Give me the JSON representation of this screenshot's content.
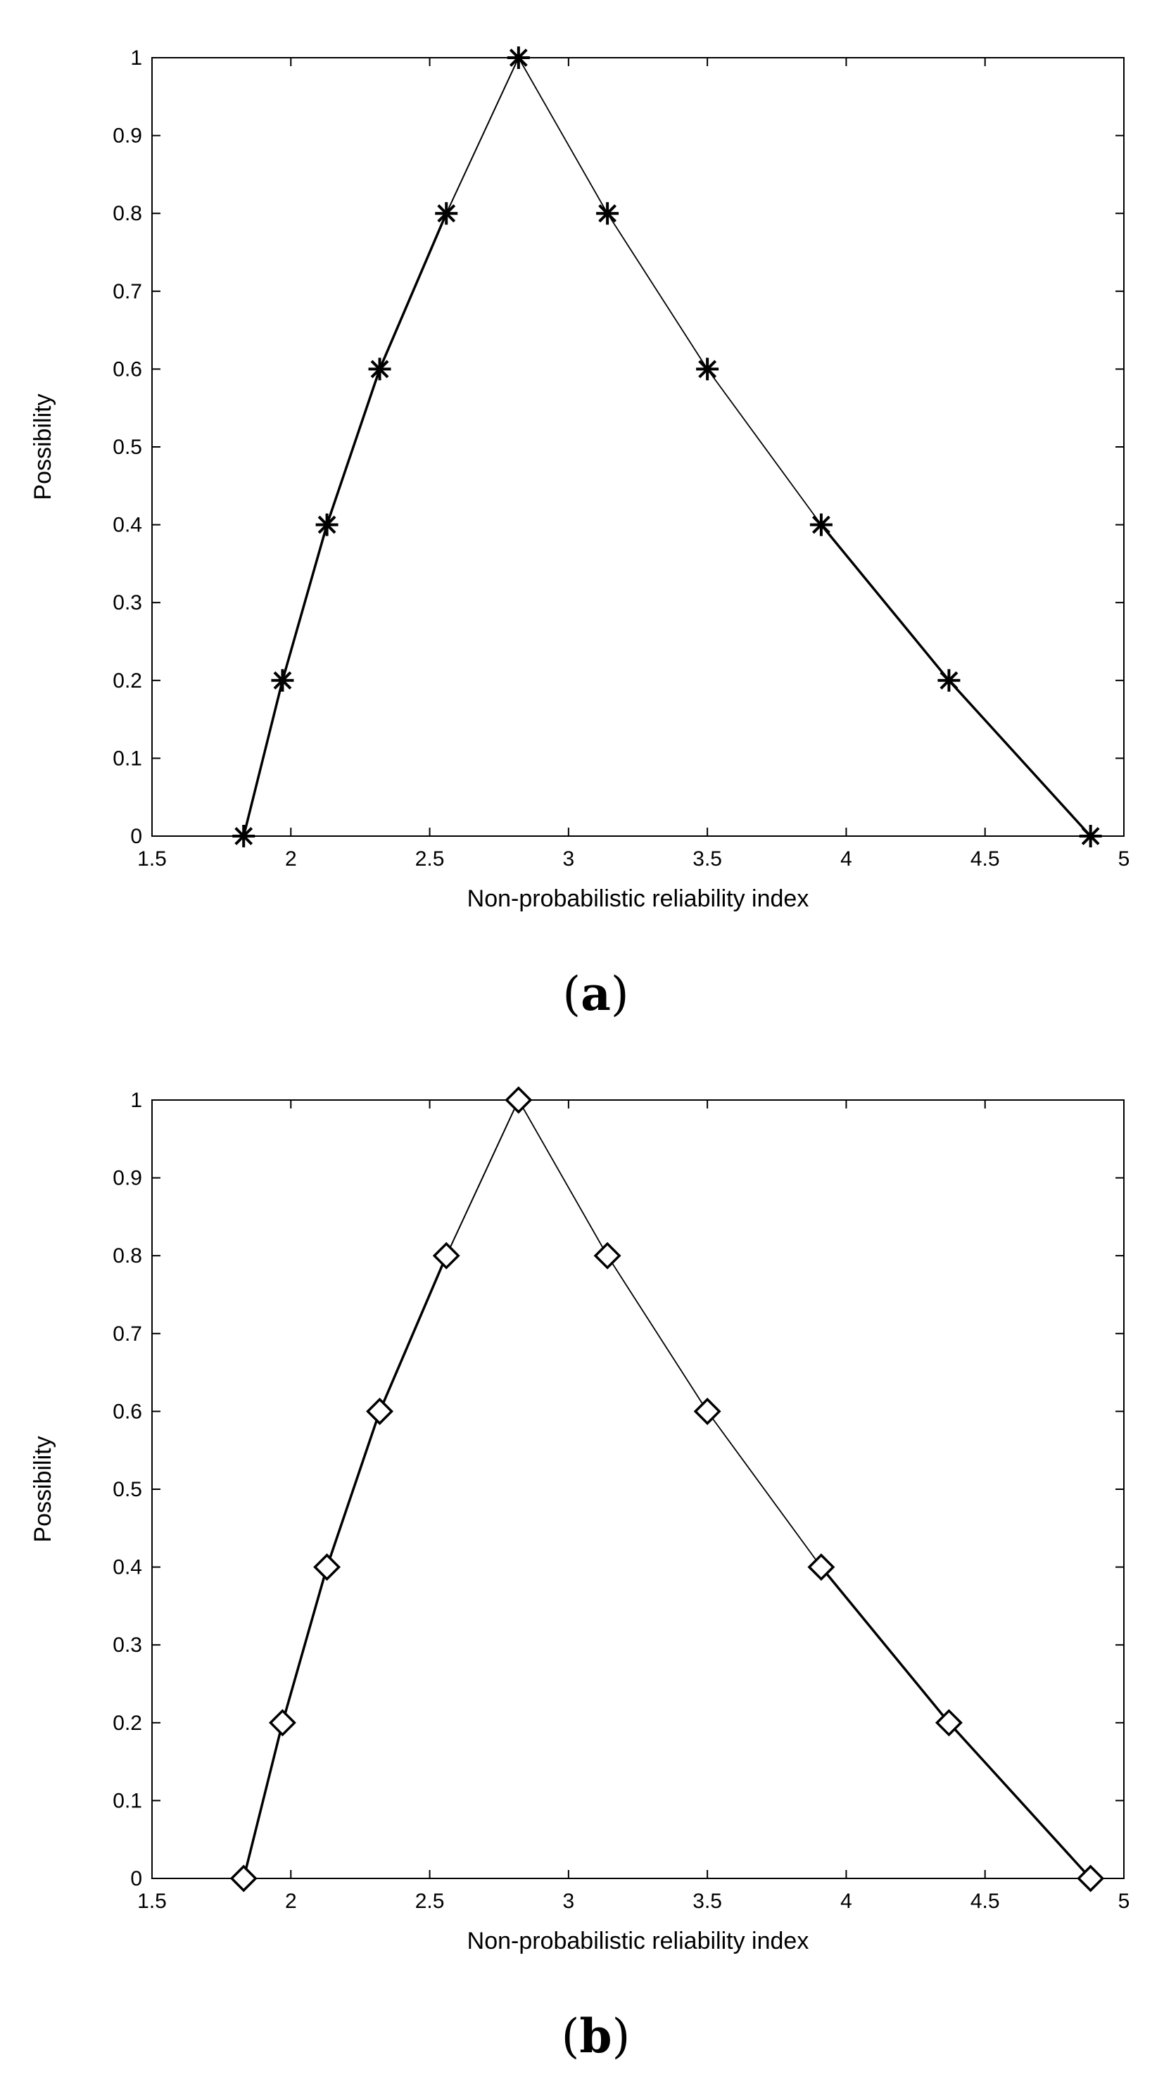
{
  "chart_data": [
    {
      "panel": "a",
      "caption_letter": "a",
      "type": "line",
      "marker": "asterisk",
      "xlabel": "Non-probabilistic reliability index",
      "ylabel": "Possibility",
      "xlim": [
        1.5,
        5
      ],
      "ylim": [
        0,
        1
      ],
      "xticks": [
        "1.5",
        "2",
        "2.5",
        "3",
        "3.5",
        "4",
        "4.5",
        "5"
      ],
      "yticks": [
        "0",
        "0.1",
        "0.2",
        "0.3",
        "0.4",
        "0.5",
        "0.6",
        "0.7",
        "0.8",
        "0.9",
        "1"
      ],
      "grid": false,
      "x": [
        1.83,
        1.97,
        2.13,
        2.32,
        2.56,
        2.82,
        3.14,
        3.5,
        3.91,
        4.37,
        4.88
      ],
      "y": [
        0,
        0.2,
        0.4,
        0.6,
        0.8,
        1,
        0.8,
        0.6,
        0.4,
        0.2,
        0
      ]
    },
    {
      "panel": "b",
      "caption_letter": "b",
      "type": "line",
      "marker": "diamond",
      "xlabel": "Non-probabilistic reliability index",
      "ylabel": "Possibility",
      "xlim": [
        1.5,
        5
      ],
      "ylim": [
        0,
        1
      ],
      "xticks": [
        "1.5",
        "2",
        "2.5",
        "3",
        "3.5",
        "4",
        "4.5",
        "5"
      ],
      "yticks": [
        "0",
        "0.1",
        "0.2",
        "0.3",
        "0.4",
        "0.5",
        "0.6",
        "0.7",
        "0.8",
        "0.9",
        "1"
      ],
      "grid": false,
      "x": [
        1.83,
        1.97,
        2.13,
        2.32,
        2.56,
        2.82,
        3.14,
        3.5,
        3.91,
        4.37,
        4.88
      ],
      "y": [
        0,
        0.2,
        0.4,
        0.6,
        0.8,
        1,
        0.8,
        0.6,
        0.4,
        0.2,
        0
      ]
    }
  ]
}
